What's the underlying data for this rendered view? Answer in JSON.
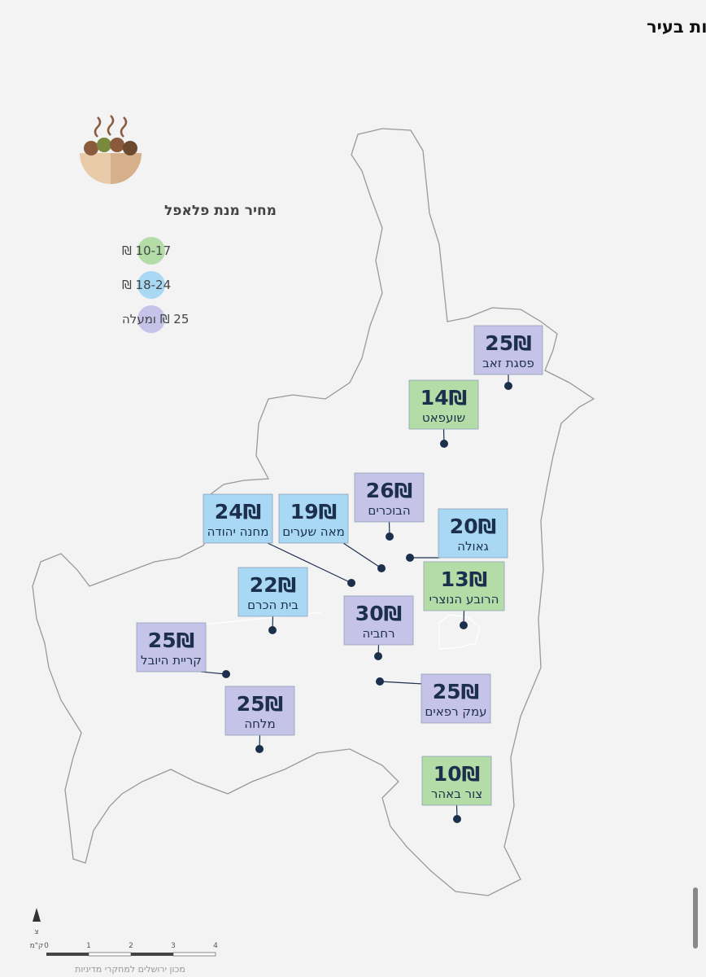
{
  "title": "מחיר מנת פלאפל בשכונות נבחרות בעיר",
  "legend": {
    "title": "מחיר מנת פלאפל",
    "items": [
      {
        "label": "10-17 ₪",
        "color": "#b4dca6"
      },
      {
        "label": "18-24 ₪",
        "color": "#a8d8f3"
      },
      {
        "label": "25 ₪ ומעלה",
        "color": "#c6c3e8"
      }
    ]
  },
  "neighborhoods": [
    {
      "name": "פסגת זאב",
      "price": "25₪",
      "color": "#c6c3e8"
    },
    {
      "name": "שועפאט",
      "price": "14₪",
      "color": "#b4dca6"
    },
    {
      "name": "הבוכרים",
      "price": "26₪",
      "color": "#c6c3e8"
    },
    {
      "name": "מאה שערים",
      "price": "19₪",
      "color": "#a8d8f3"
    },
    {
      "name": "מחנה יהודה",
      "price": "24₪",
      "color": "#a8d8f3"
    },
    {
      "name": "גאולה",
      "price": "20₪",
      "color": "#a8d8f3"
    },
    {
      "name": "הרובע הנוצרי",
      "price": "13₪",
      "color": "#b4dca6"
    },
    {
      "name": "בית הכרם",
      "price": "22₪",
      "color": "#a8d8f3"
    },
    {
      "name": "רחביה",
      "price": "30₪",
      "color": "#c6c3e8"
    },
    {
      "name": "קריית היובל",
      "price": "25₪",
      "color": "#c6c3e8"
    },
    {
      "name": "עמק רפאים",
      "price": "25₪",
      "color": "#c6c3e8"
    },
    {
      "name": "מלחה",
      "price": "25₪",
      "color": "#c6c3e8"
    },
    {
      "name": "צור באהר",
      "price": "10₪",
      "color": "#b4dca6"
    }
  ],
  "scale": {
    "north": "צ",
    "ticks": [
      "0",
      "1",
      "2",
      "3",
      "4"
    ],
    "unit": "ק\"מ"
  },
  "footer": "מכון ירושלים למחקרי מדיניות"
}
